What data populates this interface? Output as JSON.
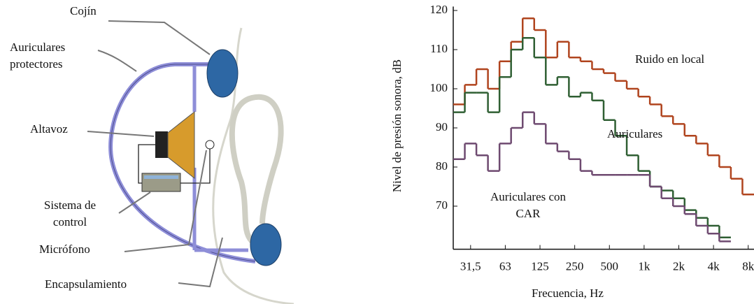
{
  "diagram": {
    "labels": [
      "Cojín",
      "Auriculares protectores",
      "Altavoz",
      "Sistema de control",
      "Micrófono",
      "Encapsulamiento"
    ]
  },
  "chart_data": {
    "type": "step",
    "y_label": "Nivel de presión sonora, dB",
    "x_label": "Frecuencia, Hz",
    "categories": [
      null,
      "31,5",
      null,
      null,
      "63",
      null,
      null,
      "125",
      null,
      null,
      "250",
      null,
      null,
      "500",
      null,
      null,
      "1k",
      null,
      null,
      "2k",
      null,
      null,
      "4k",
      null,
      null,
      "8k"
    ],
    "series": [
      {
        "name": "Ruido en local",
        "color": "#b0441e",
        "values": [
          96,
          101,
          105,
          100,
          107,
          112,
          118,
          115,
          108,
          112,
          108,
          107,
          105,
          104,
          102,
          100,
          98,
          96,
          93,
          91,
          88,
          86,
          83,
          80,
          77,
          73
        ]
      },
      {
        "name": "Auriculares",
        "color": "#2f5f33",
        "values": [
          94,
          99,
          99,
          94,
          103,
          110,
          113,
          108,
          101,
          103,
          98,
          99,
          97,
          92,
          88,
          83,
          79,
          75,
          74,
          72,
          69,
          67,
          65,
          62,
          null,
          null
        ]
      },
      {
        "name": "Auriculares con CAR",
        "color": "#6e4a70",
        "values": [
          82,
          86,
          83,
          79,
          86,
          90,
          94,
          91,
          86,
          84,
          82,
          79,
          78,
          78,
          78,
          78,
          78,
          75,
          72,
          70,
          68,
          65,
          63,
          61,
          null,
          null
        ]
      }
    ],
    "ylim": [
      59,
      121
    ],
    "yticks": [
      70,
      80,
      90,
      100,
      110,
      120
    ]
  }
}
